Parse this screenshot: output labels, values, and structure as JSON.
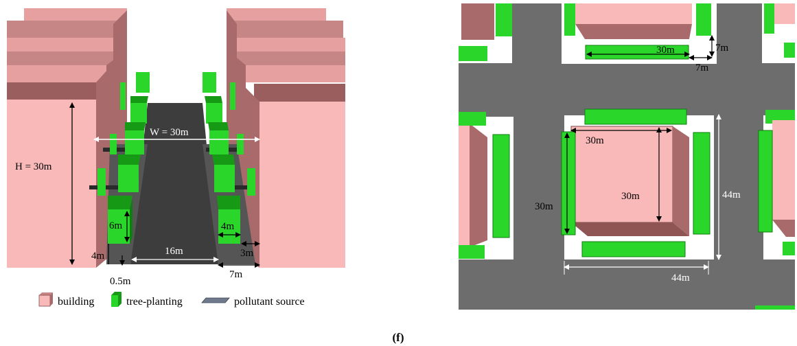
{
  "left_panel": {
    "labels": {
      "height": "H = 30m",
      "width": "W = 30m",
      "tree_height": "6m",
      "tree_height_right": "4m",
      "road_width": "16m",
      "tree_offset": "4m",
      "curb": "0.5m",
      "setback": "3m",
      "sidewalk": "7m"
    }
  },
  "right_panel": {
    "labels": {
      "tree_len_top": "30m",
      "gap_v": "7m",
      "gap_h": "7m",
      "bldg_w": "30m",
      "bldg_h": "30m",
      "tree_len_left": "30m",
      "plot_h": "44m",
      "plot_w": "44m"
    }
  },
  "legend": {
    "building": "building",
    "tree": "tree-planting",
    "source": "pollutant source"
  },
  "caption": "(f)",
  "colors": {
    "building_front": "#f9b9b9",
    "building_side": "#a86a6a",
    "building_top": "#e7a0a0",
    "tree_front": "#2bd62b",
    "tree_side": "#169a16",
    "road": "#3d3d3d",
    "ground": "#6d6d6d",
    "plot": "#ffffff"
  }
}
